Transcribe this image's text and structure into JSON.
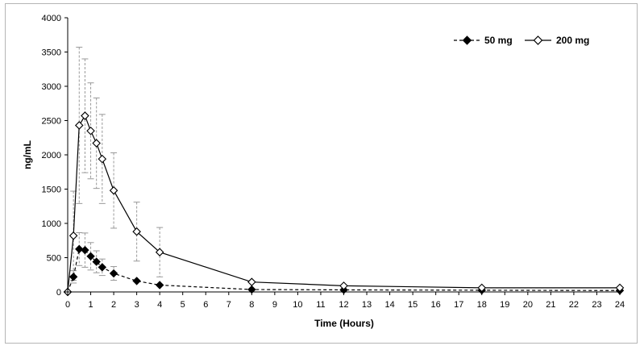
{
  "chart_data": {
    "type": "line",
    "title": "",
    "xlabel": "Time (Hours)",
    "ylabel": "ng/mL",
    "xlim": [
      0,
      24
    ],
    "ylim": [
      0,
      4000
    ],
    "x_ticks": [
      0,
      1,
      2,
      3,
      4,
      5,
      6,
      7,
      8,
      9,
      10,
      11,
      12,
      13,
      14,
      15,
      16,
      17,
      18,
      19,
      20,
      21,
      22,
      23,
      24
    ],
    "y_ticks": [
      0,
      500,
      1000,
      1500,
      2000,
      2500,
      3000,
      3500,
      4000
    ],
    "grid": false,
    "legend_position": "top-right",
    "series": [
      {
        "name": "50 mg",
        "line_style": "dashed",
        "marker": "filled-diamond",
        "x": [
          0,
          0.25,
          0.5,
          0.75,
          1,
          1.25,
          1.5,
          2,
          3,
          4,
          8,
          12,
          18,
          24
        ],
        "y": [
          0,
          220,
          625,
          610,
          520,
          440,
          360,
          270,
          160,
          100,
          35,
          30,
          25,
          20
        ],
        "err": [
          0,
          90,
          240,
          250,
          200,
          160,
          120,
          100,
          0,
          0,
          0,
          0,
          0,
          0
        ]
      },
      {
        "name": "200 mg",
        "line_style": "solid",
        "marker": "open-diamond",
        "x": [
          0,
          0.25,
          0.5,
          0.75,
          1,
          1.25,
          1.5,
          2,
          3,
          4,
          8,
          12,
          18,
          24
        ],
        "y": [
          0,
          820,
          2430,
          2570,
          2350,
          2170,
          1940,
          1480,
          880,
          580,
          145,
          90,
          60,
          60
        ],
        "err": [
          0,
          650,
          1140,
          830,
          700,
          660,
          650,
          550,
          430,
          360,
          0,
          0,
          0,
          0
        ]
      }
    ]
  }
}
